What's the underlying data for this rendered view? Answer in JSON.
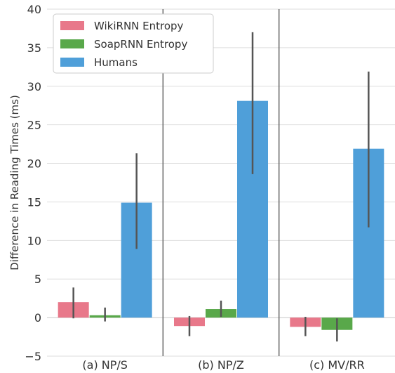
{
  "chart_data": {
    "type": "bar",
    "title": "",
    "xlabel": "",
    "ylabel": "Difference in Reading Times (ms)",
    "ylim": [
      -5,
      40
    ],
    "yticks": [
      -5,
      0,
      5,
      10,
      15,
      20,
      25,
      30,
      35,
      40
    ],
    "grid": true,
    "legend_position": "top-left",
    "categories": [
      "(a) NP/S",
      "(b) NP/Z",
      "(c) MV/RR"
    ],
    "series": [
      {
        "name": "WikiRNN Entropy",
        "color": "#e8788a",
        "values": [
          2.0,
          -1.1,
          -1.2
        ],
        "err_low": [
          -0.1,
          -2.4,
          -2.4
        ],
        "err_high": [
          3.9,
          0.2,
          0.1
        ]
      },
      {
        "name": "SoapRNN Entropy",
        "color": "#59a84a",
        "values": [
          0.3,
          1.1,
          -1.6
        ],
        "err_low": [
          -0.5,
          0.1,
          -3.1
        ],
        "err_high": [
          1.3,
          2.2,
          -0.1
        ]
      },
      {
        "name": "Humans",
        "color": "#4f9fd9",
        "values": [
          14.9,
          28.1,
          21.9
        ],
        "err_low": [
          8.9,
          18.6,
          11.7
        ],
        "err_high": [
          21.3,
          37.0,
          31.9
        ]
      }
    ],
    "group_separators": true
  }
}
